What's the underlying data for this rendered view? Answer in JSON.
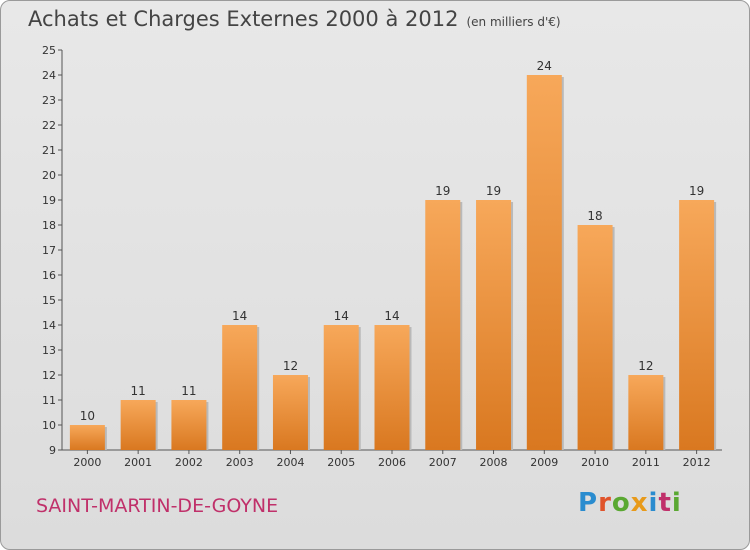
{
  "header": {
    "title": "Achats et Charges Externes 2000 à 2012",
    "subtitle": "(en milliers d'€)"
  },
  "footer": {
    "place": "SAINT-MARTIN-DE-GOYNE",
    "logo": "Proxiti"
  },
  "colors": {
    "bar_top": "#f7a85a",
    "bar_bottom": "#d97820",
    "place_text": "#c0306a"
  },
  "chart_data": {
    "type": "bar",
    "title": "Achats et Charges Externes 2000 à 2012",
    "subtitle": "(en milliers d'€)",
    "categories": [
      "2000",
      "2001",
      "2002",
      "2003",
      "2004",
      "2005",
      "2006",
      "2007",
      "2008",
      "2009",
      "2010",
      "2011",
      "2012"
    ],
    "values": [
      10,
      11,
      11,
      14,
      12,
      14,
      14,
      19,
      19,
      24,
      18,
      12,
      19
    ],
    "ylim": [
      9,
      25
    ],
    "yticks": [
      9,
      10,
      11,
      12,
      13,
      14,
      15,
      16,
      17,
      18,
      19,
      20,
      21,
      22,
      23,
      24,
      25
    ],
    "grid": false,
    "xlabel": "",
    "ylabel": ""
  }
}
